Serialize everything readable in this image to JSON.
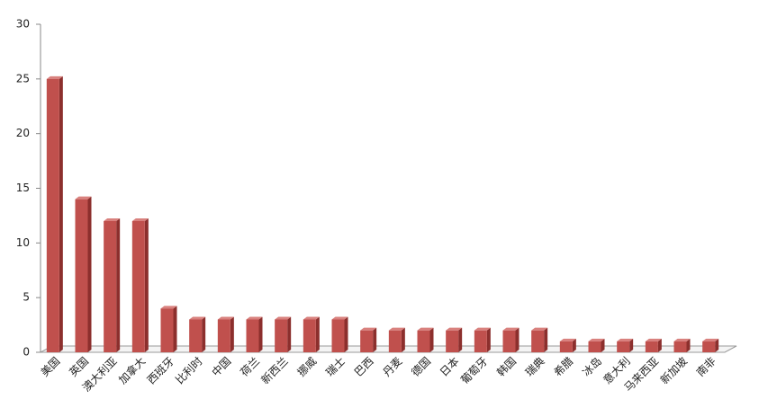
{
  "chart_data": {
    "type": "bar3d",
    "categories": [
      "美国",
      "英国",
      "澳大利亚",
      "加拿大",
      "西班牙",
      "比利时",
      "中国",
      "荷兰",
      "新西兰",
      "挪威",
      "瑞士",
      "巴西",
      "丹麦",
      "德国",
      "日本",
      "葡萄牙",
      "韩国",
      "瑞典",
      "希腊",
      "冰岛",
      "意大利",
      "马来西亚",
      "新加坡",
      "南非"
    ],
    "values": [
      25,
      14,
      12,
      12,
      4,
      3,
      3,
      3,
      3,
      3,
      3,
      2,
      2,
      2,
      2,
      2,
      2,
      2,
      1,
      1,
      1,
      1,
      1,
      1
    ],
    "color": "#c0504d",
    "ylim": [
      0,
      30
    ],
    "yticks": [
      0,
      5,
      10,
      15,
      20,
      25,
      30
    ],
    "grid": false
  }
}
